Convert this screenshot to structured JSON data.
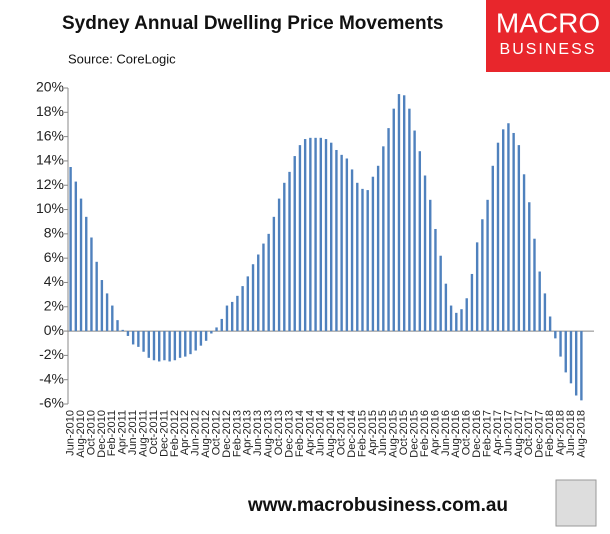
{
  "chart_data": {
    "type": "bar",
    "title": "Sydney Annual Dwelling Price Movements",
    "subtitle": "Source: CoreLogic",
    "categories": [
      "Jun-2010",
      null,
      "Aug-2010",
      null,
      "Oct-2010",
      null,
      "Dec-2010",
      null,
      "Feb-2011",
      null,
      "Apr-2011",
      null,
      "Jun-2011",
      null,
      "Aug-2011",
      null,
      "Oct-2011",
      null,
      "Dec-2011",
      null,
      "Feb-2012",
      null,
      "Apr-2012",
      null,
      "Jun-2012",
      null,
      "Aug-2012",
      null,
      "Oct-2012",
      null,
      "Dec-2012",
      null,
      "Feb-2013",
      null,
      "Apr-2013",
      null,
      "Jun-2013",
      null,
      "Aug-2013",
      null,
      "Oct-2013",
      null,
      "Dec-2013",
      null,
      "Feb-2014",
      null,
      "Apr-2014",
      null,
      "Jun-2014",
      null,
      "Aug-2014",
      null,
      "Oct-2014",
      null,
      "Dec-2014",
      null,
      "Feb-2015",
      null,
      "Apr-2015",
      null,
      "Jun-2015",
      null,
      "Aug-2015",
      null,
      "Oct-2015",
      null,
      "Dec-2015",
      null,
      "Feb-2016",
      null,
      "Apr-2016",
      null,
      "Jun-2016",
      null,
      "Aug-2016",
      null,
      "Oct-2016",
      null,
      "Dec-2016",
      null,
      "Feb-2017",
      null,
      "Apr-2017",
      null,
      "Jun-2017",
      null,
      "Aug-2017",
      null,
      "Oct-2017",
      null,
      "Dec-2017",
      null,
      "Feb-2018",
      null,
      "Apr-2018",
      null,
      "Jun-2018",
      null,
      "Aug-2018"
    ],
    "values": [
      13.5,
      12.3,
      10.9,
      9.4,
      7.7,
      5.7,
      4.2,
      3.1,
      2.1,
      0.9,
      0.1,
      -0.4,
      -1.1,
      -1.3,
      -1.7,
      -2.2,
      -2.4,
      -2.5,
      -2.4,
      -2.5,
      -2.4,
      -2.2,
      -2.1,
      -1.9,
      -1.6,
      -1.2,
      -0.8,
      -0.2,
      0.3,
      1.0,
      2.1,
      2.4,
      2.9,
      3.7,
      4.5,
      5.5,
      6.3,
      7.2,
      8.0,
      9.4,
      10.9,
      12.2,
      13.1,
      14.4,
      15.3,
      15.8,
      15.9,
      15.9,
      15.9,
      15.8,
      15.5,
      14.9,
      14.5,
      14.2,
      13.3,
      12.2,
      11.7,
      11.6,
      12.7,
      13.6,
      15.2,
      16.7,
      18.3,
      19.5,
      19.4,
      18.3,
      16.5,
      14.8,
      12.8,
      10.8,
      8.4,
      6.2,
      3.9,
      2.1,
      1.5,
      1.8,
      2.7,
      4.7,
      7.3,
      9.2,
      10.8,
      13.6,
      15.5,
      16.6,
      17.1,
      16.3,
      15.3,
      12.9,
      10.6,
      7.6,
      4.9,
      3.1,
      1.2,
      -0.6,
      -2.1,
      -3.4,
      -4.3,
      -5.3,
      -5.7
    ],
    "color": "#4f81bd",
    "ylim": [
      -6,
      20
    ],
    "yticks": [
      {
        "value": -6,
        "label": "-6%"
      },
      {
        "value": -4,
        "label": "-4%"
      },
      {
        "value": -2,
        "label": "-2%"
      },
      {
        "value": 0,
        "label": "0%"
      },
      {
        "value": 2,
        "label": "2%"
      },
      {
        "value": 4,
        "label": "4%"
      },
      {
        "value": 6,
        "label": "6%"
      },
      {
        "value": 8,
        "label": "8%"
      },
      {
        "value": 10,
        "label": "10%"
      },
      {
        "value": 12,
        "label": "12%"
      },
      {
        "value": 14,
        "label": "14%"
      },
      {
        "value": 16,
        "label": "16%"
      },
      {
        "value": 18,
        "label": "18%"
      },
      {
        "value": 20,
        "label": "20%"
      }
    ],
    "grid": false
  },
  "logo": {
    "line1": "MACRO",
    "line2": "BUSINESS"
  },
  "footer": "www.macrobusiness.com.au"
}
